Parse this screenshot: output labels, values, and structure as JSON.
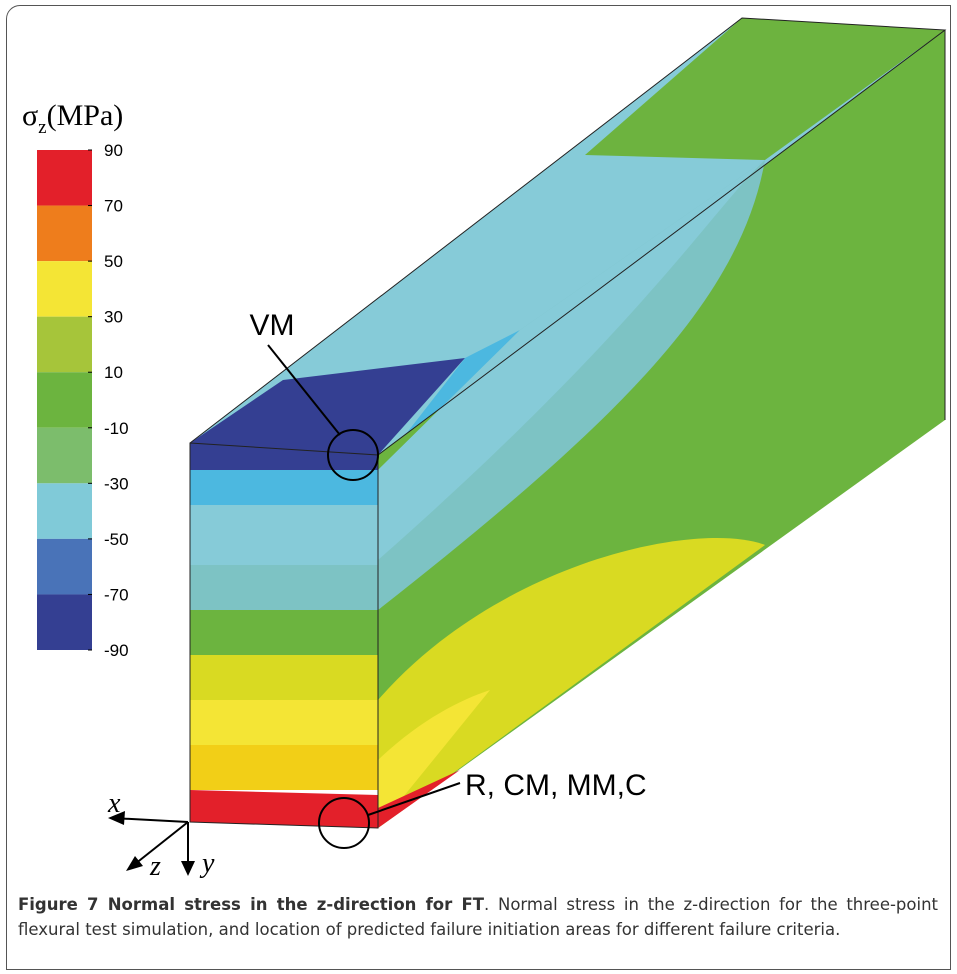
{
  "figure": {
    "legend": {
      "title": {
        "symbol": "σ",
        "subscript": "z",
        "unit": "(MPa)"
      },
      "ticks": [
        "90",
        "70",
        "50",
        "30",
        "10",
        "-10",
        "-30",
        "-50",
        "-70",
        "-90"
      ],
      "colors": [
        "#e3202a",
        "#ee7d1c",
        "#f4e535",
        "#a6c53a",
        "#6cb43f",
        "#7cbd6c",
        "#80cad8",
        "#4973b8",
        "#343f92"
      ]
    },
    "labels": {
      "vm": "VM",
      "bottom": "R, CM, MM,C"
    },
    "axes": {
      "x": "x",
      "z": "z",
      "y": "y"
    }
  },
  "caption": {
    "label": "Figure 7 Normal stress in the z-direction for FT",
    "text": ". Normal stress in the z-direction for the three-point flexural test simulation, and location of predicted failure initiation areas for different failure criteria."
  }
}
